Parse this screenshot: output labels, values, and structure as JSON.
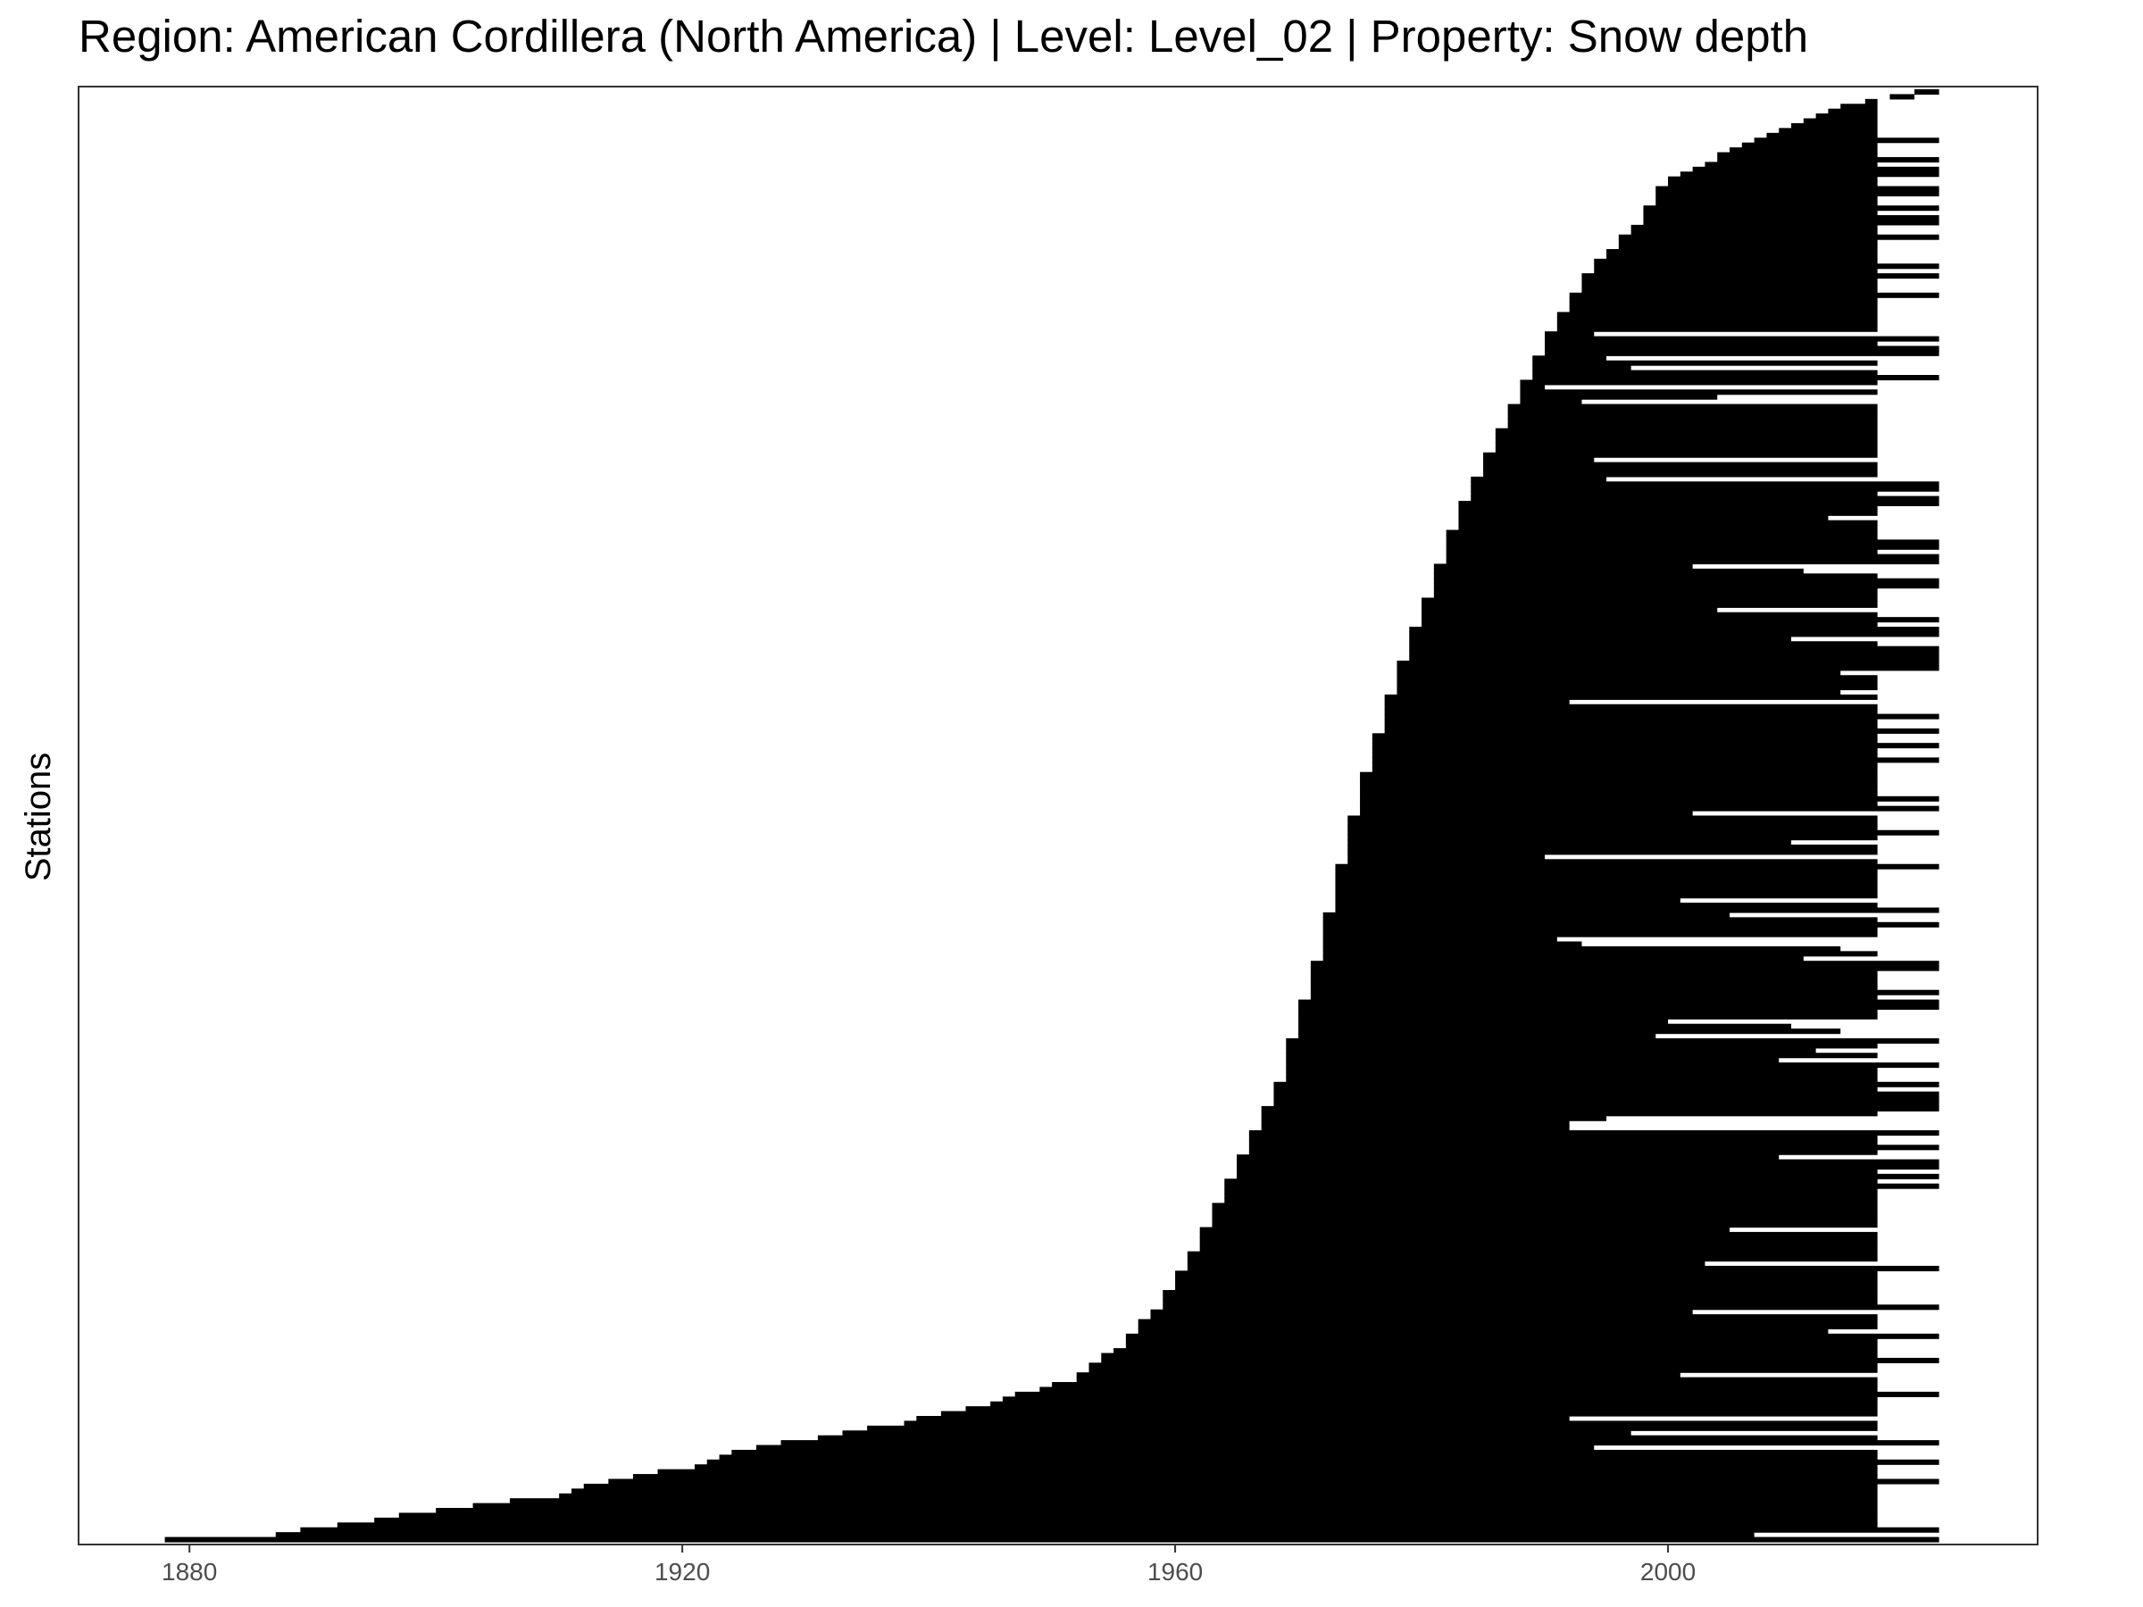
{
  "chart_data": {
    "type": "bar",
    "orientation": "horizontal",
    "title": "Region: American Cordillera (North America) | Level: Level_02 | Property: Snow depth",
    "xlabel": "",
    "ylabel": "Stations",
    "x_ticks": [
      1880,
      1920,
      1960,
      2000
    ],
    "xlim": [
      1871,
      2030
    ],
    "n_stations": 300,
    "bar_color": "#000000",
    "grid": false,
    "legend": "none",
    "start_curve": [
      [
        0,
        1878
      ],
      [
        1,
        1887
      ],
      [
        4,
        1895
      ],
      [
        6,
        1900
      ],
      [
        9,
        1910
      ],
      [
        12,
        1914
      ],
      [
        15,
        1921
      ],
      [
        18,
        1924
      ],
      [
        21,
        1931
      ],
      [
        24,
        1938
      ],
      [
        28,
        1945
      ],
      [
        33,
        1952
      ],
      [
        40,
        1956
      ],
      [
        48,
        1959
      ],
      [
        60,
        1962
      ],
      [
        75,
        1965
      ],
      [
        95,
        1969
      ],
      [
        120,
        1972
      ],
      [
        150,
        1975
      ],
      [
        175,
        1978
      ],
      [
        195,
        1981
      ],
      [
        215,
        1984
      ],
      [
        235,
        1988
      ],
      [
        250,
        1991
      ],
      [
        262,
        1994
      ],
      [
        272,
        1998
      ],
      [
        280,
        2000
      ],
      [
        290,
        2008
      ],
      [
        296,
        2014
      ],
      [
        300,
        2022
      ]
    ],
    "end_years": [
      2017,
      2022
    ],
    "end_note": "Most station records run to about 2017; a subset extends to 2022"
  }
}
